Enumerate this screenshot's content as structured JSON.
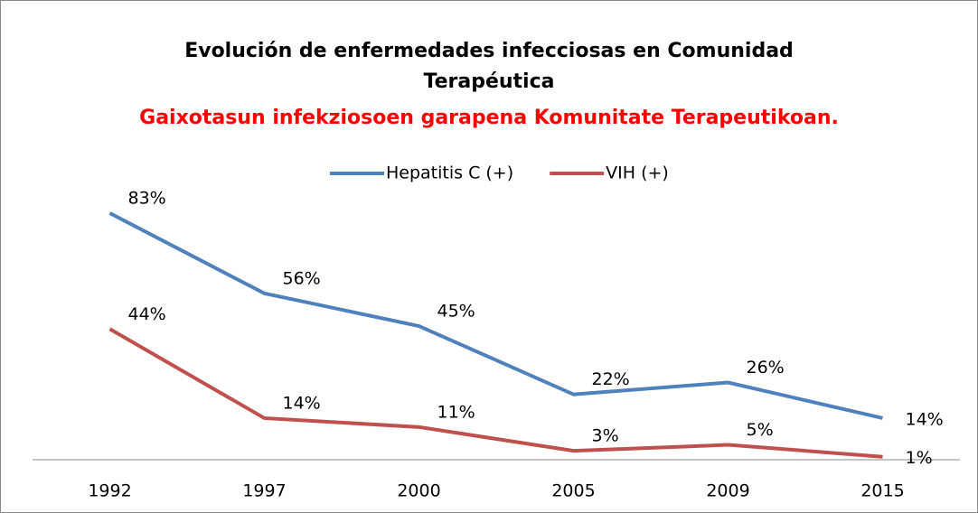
{
  "chart_data": {
    "type": "line",
    "title": "Evolución de enfermedades infecciosas en Comunidad Terapéutica",
    "subtitle": "Gaixotasun infekziosoen garapena Komunitate Terapeutikoan.",
    "categories": [
      "1992",
      "1997",
      "2000",
      "2005",
      "2009",
      "2015"
    ],
    "series": [
      {
        "name": "Hepatitis C (+)",
        "color": "#4f81bd",
        "values": [
          83,
          56,
          45,
          22,
          26,
          14
        ],
        "value_labels": [
          "83%",
          "56%",
          "45%",
          "22%",
          "26%",
          "14%"
        ]
      },
      {
        "name": "VIH (+)",
        "color": "#c0504d",
        "values": [
          44,
          14,
          11,
          3,
          5,
          1
        ],
        "value_labels": [
          "44%",
          "14%",
          "11%",
          "3%",
          "5%",
          "1%"
        ]
      }
    ],
    "ylim": [
      0,
      90
    ],
    "legend": "top"
  }
}
